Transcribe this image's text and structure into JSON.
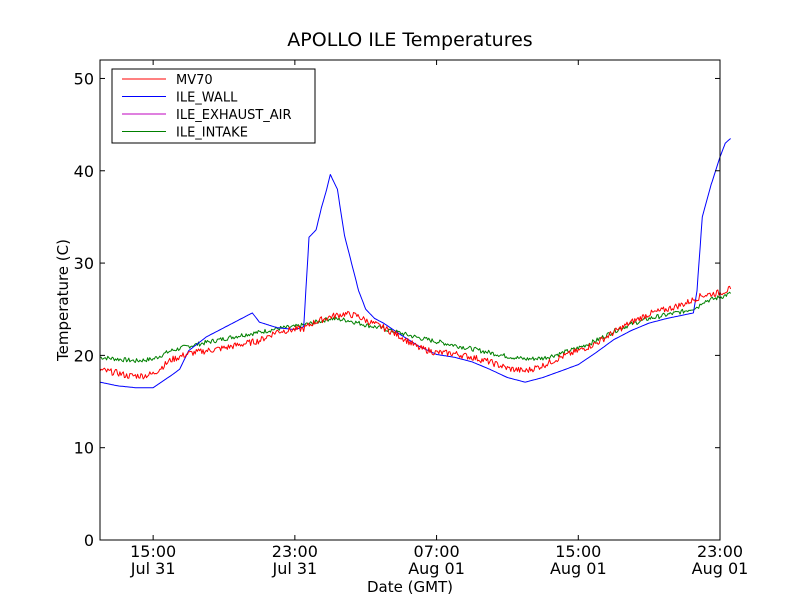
{
  "chart_data": {
    "type": "line",
    "title": "APOLLO ILE Temperatures",
    "xlabel": "Date (GMT)",
    "ylabel": "Temperature (C)",
    "ylim": [
      0,
      52
    ],
    "xlim": [
      0,
      35
    ],
    "grid": false,
    "legend_position": "top-left",
    "x_unit": "hours since Jul 31 12:00 GMT",
    "yticks": [
      0,
      10,
      20,
      30,
      40,
      50
    ],
    "xticks": [
      {
        "x": 3,
        "time": "15:00",
        "date": "Jul 31"
      },
      {
        "x": 11,
        "time": "23:00",
        "date": "Jul 31"
      },
      {
        "x": 19,
        "time": "07:00",
        "date": "Aug 01"
      },
      {
        "x": 27,
        "time": "15:00",
        "date": "Aug 01"
      },
      {
        "x": 35,
        "time": "23:00",
        "date": "Aug 01"
      }
    ],
    "series": [
      {
        "name": "MV70",
        "color": "#ff0000",
        "noise": 0.35,
        "points": [
          [
            0,
            18.4
          ],
          [
            1,
            18.1
          ],
          [
            1.5,
            17.8
          ],
          [
            2.5,
            17.8
          ],
          [
            3,
            18.0
          ],
          [
            4,
            19.5
          ],
          [
            5,
            20.2
          ],
          [
            6,
            20.5
          ],
          [
            7,
            20.8
          ],
          [
            8,
            21.2
          ],
          [
            9,
            21.6
          ],
          [
            10,
            22.6
          ],
          [
            11,
            22.8
          ],
          [
            11.5,
            22.9
          ],
          [
            12,
            23.5
          ],
          [
            13,
            24.2
          ],
          [
            13.8,
            24.5
          ],
          [
            14.5,
            24.3
          ],
          [
            15,
            23.8
          ],
          [
            16,
            23.0
          ],
          [
            17,
            22.0
          ],
          [
            18,
            20.8
          ],
          [
            19,
            20.3
          ],
          [
            20,
            20.2
          ],
          [
            21,
            19.8
          ],
          [
            22,
            19.3
          ],
          [
            23,
            18.6
          ],
          [
            24,
            18.3
          ],
          [
            25,
            18.9
          ],
          [
            26,
            19.8
          ],
          [
            27,
            20.5
          ],
          [
            28,
            21.3
          ],
          [
            29,
            22.5
          ],
          [
            30,
            23.6
          ],
          [
            31,
            24.5
          ],
          [
            32,
            25.0
          ],
          [
            33,
            25.6
          ],
          [
            33.8,
            26.3
          ],
          [
            34,
            26.5
          ],
          [
            35,
            26.8
          ],
          [
            35.6,
            27.2
          ]
        ]
      },
      {
        "name": "ILE_WALL",
        "color": "#0000ff",
        "noise": 0,
        "points": [
          [
            0,
            17.1
          ],
          [
            1,
            16.7
          ],
          [
            2,
            16.5
          ],
          [
            3,
            16.5
          ],
          [
            4,
            17.8
          ],
          [
            4.5,
            18.5
          ],
          [
            5,
            20.5
          ],
          [
            6,
            22.0
          ],
          [
            7,
            23.0
          ],
          [
            8,
            24.0
          ],
          [
            8.6,
            24.6
          ],
          [
            9,
            23.6
          ],
          [
            10,
            23.0
          ],
          [
            11,
            22.8
          ],
          [
            11.5,
            23.1
          ],
          [
            11.8,
            32.8
          ],
          [
            12.2,
            33.6
          ],
          [
            12.5,
            36.0
          ],
          [
            12.8,
            38.0
          ],
          [
            13,
            39.6
          ],
          [
            13.4,
            38.0
          ],
          [
            13.8,
            33.0
          ],
          [
            14.2,
            30.0
          ],
          [
            14.6,
            27.0
          ],
          [
            15,
            25.0
          ],
          [
            15.5,
            24.0
          ],
          [
            16,
            23.5
          ],
          [
            17,
            22.2
          ],
          [
            18,
            21.0
          ],
          [
            19,
            20.1
          ],
          [
            20,
            19.8
          ],
          [
            21,
            19.3
          ],
          [
            22,
            18.5
          ],
          [
            23,
            17.6
          ],
          [
            24,
            17.1
          ],
          [
            25,
            17.6
          ],
          [
            26,
            18.3
          ],
          [
            27,
            19.0
          ],
          [
            28,
            20.3
          ],
          [
            29,
            21.7
          ],
          [
            30,
            22.7
          ],
          [
            31,
            23.5
          ],
          [
            32,
            24.0
          ],
          [
            33,
            24.4
          ],
          [
            33.5,
            24.6
          ],
          [
            33.7,
            27.0
          ],
          [
            34,
            35.0
          ],
          [
            34.5,
            38.5
          ],
          [
            35,
            41.5
          ],
          [
            35.3,
            43.0
          ],
          [
            35.6,
            43.5
          ]
        ]
      },
      {
        "name": "ILE_EXHAUST_AIR",
        "color": "#bf00bf",
        "noise": 0,
        "points": []
      },
      {
        "name": "ILE_INTAKE",
        "color": "#008000",
        "noise": 0.25,
        "points": [
          [
            0,
            19.8
          ],
          [
            1,
            19.6
          ],
          [
            2,
            19.4
          ],
          [
            3,
            19.6
          ],
          [
            4,
            20.5
          ],
          [
            5,
            21.0
          ],
          [
            6,
            21.4
          ],
          [
            7,
            21.8
          ],
          [
            8,
            22.2
          ],
          [
            9,
            22.5
          ],
          [
            10,
            22.9
          ],
          [
            11,
            23.1
          ],
          [
            12,
            23.5
          ],
          [
            13,
            24.0
          ],
          [
            14,
            23.8
          ],
          [
            15,
            23.3
          ],
          [
            16,
            22.9
          ],
          [
            17,
            22.4
          ],
          [
            18,
            21.9
          ],
          [
            19,
            21.5
          ],
          [
            20,
            21.1
          ],
          [
            21,
            20.7
          ],
          [
            22,
            20.3
          ],
          [
            23,
            19.9
          ],
          [
            24,
            19.6
          ],
          [
            25,
            19.7
          ],
          [
            26,
            20.2
          ],
          [
            27,
            20.8
          ],
          [
            28,
            21.6
          ],
          [
            29,
            22.6
          ],
          [
            30,
            23.4
          ],
          [
            31,
            24.0
          ],
          [
            32,
            24.4
          ],
          [
            33,
            24.8
          ],
          [
            33.8,
            25.3
          ],
          [
            34,
            25.8
          ],
          [
            35,
            26.3
          ],
          [
            35.6,
            26.7
          ]
        ]
      }
    ]
  }
}
